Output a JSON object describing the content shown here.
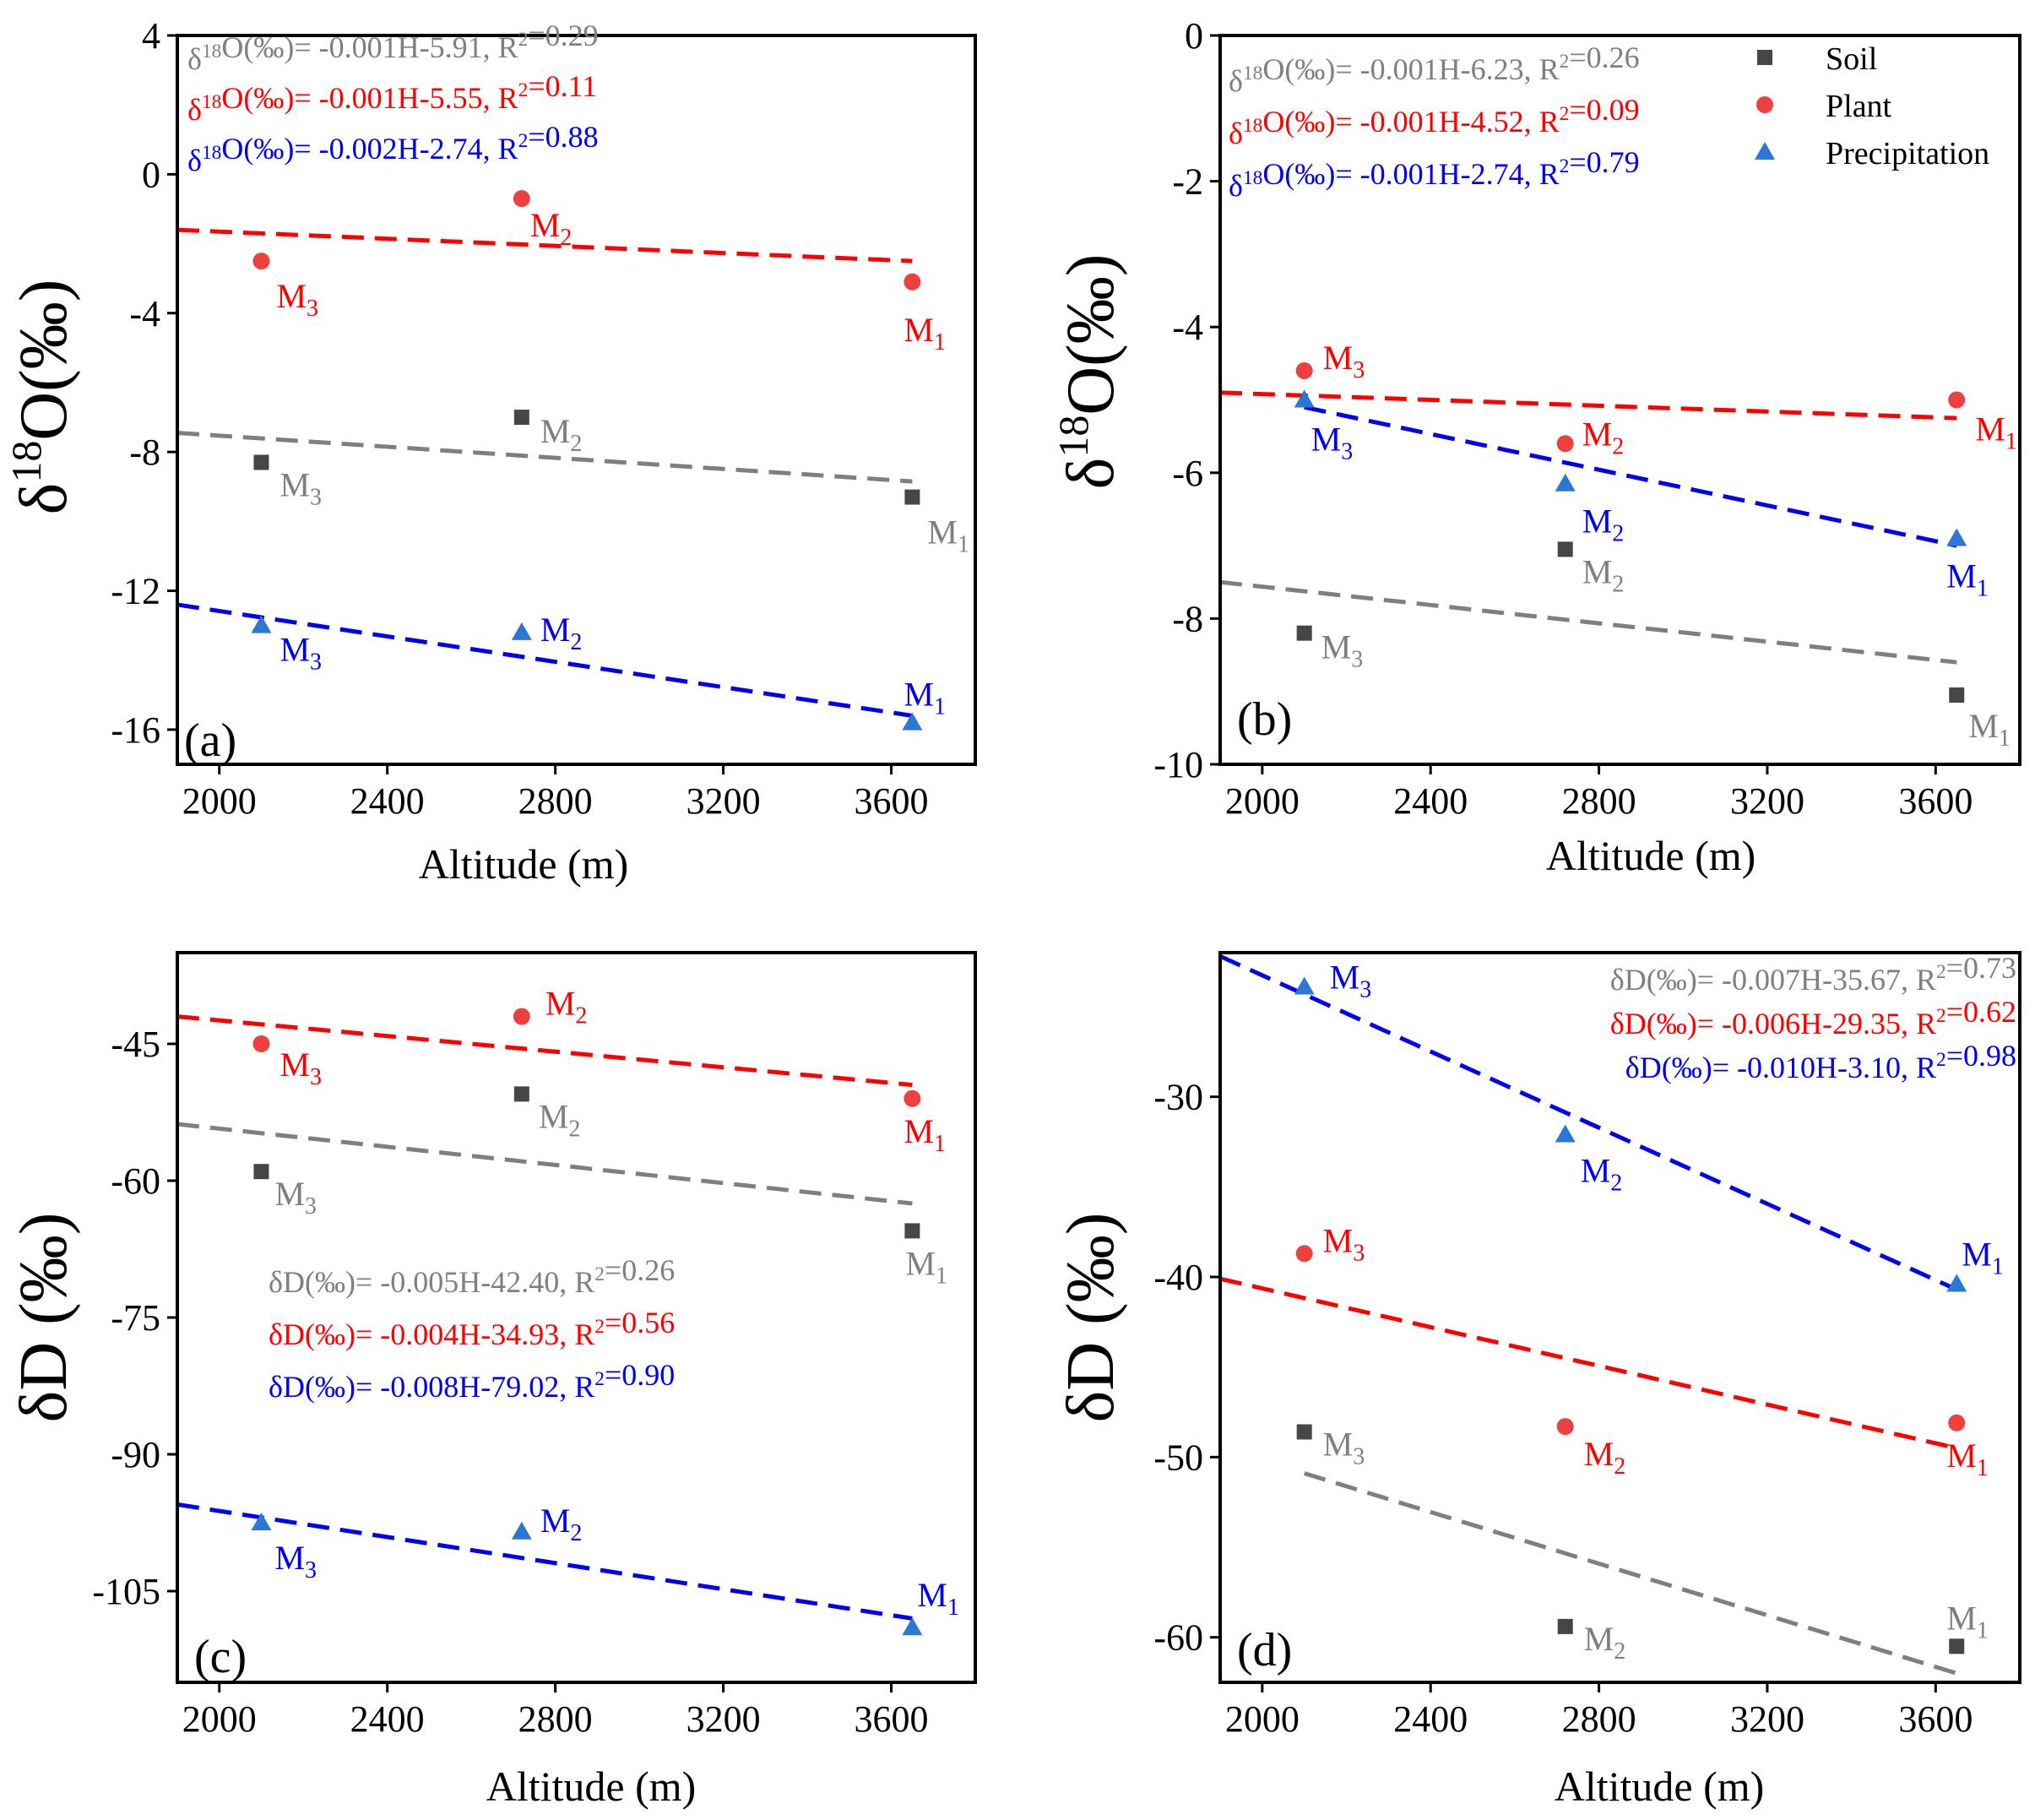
{
  "colors": {
    "soil": "#464646",
    "plant": "#ef4040",
    "precip": "#2a78d4",
    "soil_line": "#7f7f7f",
    "plant_line": "#ff0000",
    "precip_line": "#0000ee",
    "soil_text": "#7f7f7f",
    "plant_text": "#ff0000",
    "precip_text": "#0000ee"
  },
  "legend": {
    "soil": "Soil",
    "plant": "Plant",
    "precipitation": "Precipitation"
  },
  "chart_data": [
    {
      "id": "a",
      "type": "scatter",
      "panel_label": "(a)",
      "xlabel": "Altitude (m)",
      "ylabel_base": "δ",
      "ylabel_sup": "18",
      "ylabel_rest": "O(‰)",
      "xlim": [
        1900,
        3800
      ],
      "ylim": [
        -17,
        4
      ],
      "xticks": [
        2000,
        2400,
        2800,
        3200,
        3600
      ],
      "yticks": [
        4,
        0,
        -4,
        -8,
        -12,
        -16
      ],
      "series": [
        {
          "name": "Soil",
          "key": "soil",
          "marker": "square",
          "points": [
            {
              "x": 2100,
              "y": -8.3,
              "label": "M",
              "sub": "3"
            },
            {
              "x": 2720,
              "y": -7.0,
              "label": "M",
              "sub": "2"
            },
            {
              "x": 3650,
              "y": -9.3,
              "label": "M",
              "sub": "1"
            }
          ],
          "fit": [
            [
              1900,
              -7.45
            ],
            [
              3650,
              -8.85
            ]
          ]
        },
        {
          "name": "Plant",
          "key": "plant",
          "marker": "circle",
          "points": [
            {
              "x": 2100,
              "y": -2.5,
              "label": "M",
              "sub": "3"
            },
            {
              "x": 2720,
              "y": -0.7,
              "label": "M",
              "sub": "2"
            },
            {
              "x": 3650,
              "y": -3.1,
              "label": "M",
              "sub": "1"
            }
          ],
          "fit": [
            [
              1900,
              -1.6
            ],
            [
              3650,
              -2.5
            ]
          ]
        },
        {
          "name": "Precipitation",
          "key": "precip",
          "marker": "triangle",
          "points": [
            {
              "x": 2100,
              "y": -13.0,
              "label": "M",
              "sub": "3"
            },
            {
              "x": 2720,
              "y": -13.2,
              "label": "M",
              "sub": "2"
            },
            {
              "x": 3650,
              "y": -15.8,
              "label": "M",
              "sub": "1"
            }
          ],
          "fit": [
            [
              1900,
              -12.4
            ],
            [
              3650,
              -15.6
            ]
          ]
        }
      ],
      "equations": [
        {
          "key": "soil",
          "text": "δ18O(‰)= -0.001H-5.91, R2=0.29"
        },
        {
          "key": "plant",
          "text": "δ18O(‰)= -0.001H-5.55, R2=0.11"
        },
        {
          "key": "precip",
          "text": "δ18O(‰)= -0.002H-2.74, R2=0.88"
        }
      ]
    },
    {
      "id": "b",
      "type": "scatter",
      "panel_label": "(b)",
      "xlabel": "Altitude (m)",
      "ylabel_base": "δ",
      "ylabel_sup": "18",
      "ylabel_rest": "O(‰)",
      "xlim": [
        1900,
        3800
      ],
      "ylim": [
        -10,
        0
      ],
      "xticks": [
        2000,
        2400,
        2800,
        3200,
        3600
      ],
      "yticks": [
        0,
        -2,
        -4,
        -6,
        -8,
        -10
      ],
      "series": [
        {
          "name": "Soil",
          "key": "soil",
          "marker": "square",
          "points": [
            {
              "x": 2100,
              "y": -8.2,
              "label": "M",
              "sub": "3"
            },
            {
              "x": 2720,
              "y": -7.05,
              "label": "M",
              "sub": "2"
            },
            {
              "x": 3650,
              "y": -9.05,
              "label": "M",
              "sub": "1"
            }
          ],
          "fit": [
            [
              1900,
              -7.5
            ],
            [
              3650,
              -8.6
            ]
          ]
        },
        {
          "name": "Plant",
          "key": "plant",
          "marker": "circle",
          "points": [
            {
              "x": 2100,
              "y": -4.6,
              "label": "M",
              "sub": "3"
            },
            {
              "x": 2720,
              "y": -5.6,
              "label": "M",
              "sub": "2"
            },
            {
              "x": 3650,
              "y": -5.0,
              "label": "M",
              "sub": "1"
            }
          ],
          "fit": [
            [
              1900,
              -4.9
            ],
            [
              3650,
              -5.25
            ]
          ]
        },
        {
          "name": "Precipitation",
          "key": "precip",
          "marker": "triangle",
          "points": [
            {
              "x": 2100,
              "y": -5.0,
              "label": "M",
              "sub": "3"
            },
            {
              "x": 2720,
              "y": -6.15,
              "label": "M",
              "sub": "2"
            },
            {
              "x": 3650,
              "y": -6.9,
              "label": "M",
              "sub": "1"
            }
          ],
          "fit": [
            [
              2100,
              -5.1
            ],
            [
              3650,
              -7.0
            ]
          ]
        }
      ],
      "equations": [
        {
          "key": "soil",
          "text": "δ18O(‰)= -0.001H-6.23, R2=0.26"
        },
        {
          "key": "plant",
          "text": "δ18O(‰)= -0.001H-4.52, R2=0.09"
        },
        {
          "key": "precip",
          "text": "δ18O(‰)= -0.001H-2.74, R2=0.79"
        }
      ]
    },
    {
      "id": "c",
      "type": "scatter",
      "panel_label": "(c)",
      "xlabel": "Altitude (m)",
      "ylabel_base": "δD (‰)",
      "xlim": [
        1900,
        3800
      ],
      "ylim": [
        -115,
        -35
      ],
      "xticks": [
        2000,
        2400,
        2800,
        3200,
        3600
      ],
      "yticks": [
        -45,
        -60,
        -75,
        -90,
        -105
      ],
      "series": [
        {
          "name": "Soil",
          "key": "soil",
          "marker": "square",
          "points": [
            {
              "x": 2100,
              "y": -59.0,
              "label": "M",
              "sub": "3"
            },
            {
              "x": 2720,
              "y": -50.5,
              "label": "M",
              "sub": "2"
            },
            {
              "x": 3650,
              "y": -65.5,
              "label": "M",
              "sub": "1"
            }
          ],
          "fit": [
            [
              1900,
              -53.8
            ],
            [
              3650,
              -62.5
            ]
          ]
        },
        {
          "name": "Plant",
          "key": "plant",
          "marker": "circle",
          "points": [
            {
              "x": 2100,
              "y": -45.0,
              "label": "M",
              "sub": "3"
            },
            {
              "x": 2720,
              "y": -42.0,
              "label": "M",
              "sub": "2"
            },
            {
              "x": 3650,
              "y": -51.0,
              "label": "M",
              "sub": "1"
            }
          ],
          "fit": [
            [
              1900,
              -42.0
            ],
            [
              3650,
              -49.5
            ]
          ]
        },
        {
          "name": "Precipitation",
          "key": "precip",
          "marker": "triangle",
          "points": [
            {
              "x": 2100,
              "y": -97.5,
              "label": "M",
              "sub": "3"
            },
            {
              "x": 2720,
              "y": -98.5,
              "label": "M",
              "sub": "2"
            },
            {
              "x": 3650,
              "y": -109.0,
              "label": "M",
              "sub": "1"
            }
          ],
          "fit": [
            [
              1900,
              -95.5
            ],
            [
              3650,
              -108.0
            ]
          ]
        }
      ],
      "equations": [
        {
          "key": "soil",
          "text": "δD(‰)= -0.005H-42.40, R2=0.26"
        },
        {
          "key": "plant",
          "text": "δD(‰)= -0.004H-34.93, R2=0.56"
        },
        {
          "key": "precip",
          "text": "δD(‰)= -0.008H-79.02, R2=0.90"
        }
      ]
    },
    {
      "id": "d",
      "type": "scatter",
      "panel_label": "(d)",
      "xlabel": "Altitude (m)",
      "ylabel_base": "δD (‰)",
      "xlim": [
        1900,
        3800
      ],
      "ylim": [
        -62.5,
        -22
      ],
      "xticks": [
        2000,
        2400,
        2800,
        3200,
        3600
      ],
      "yticks": [
        -30,
        -40,
        -50,
        -60
      ],
      "series": [
        {
          "name": "Soil",
          "key": "soil",
          "marker": "square",
          "points": [
            {
              "x": 2100,
              "y": -48.6,
              "label": "M",
              "sub": "3"
            },
            {
              "x": 2720,
              "y": -59.4,
              "label": "M",
              "sub": "2"
            },
            {
              "x": 3650,
              "y": -60.5,
              "label": "M",
              "sub": "1"
            }
          ],
          "fit": [
            [
              2100,
              -50.9
            ],
            [
              3650,
              -62.0
            ]
          ]
        },
        {
          "name": "Plant",
          "key": "plant",
          "marker": "circle",
          "points": [
            {
              "x": 2100,
              "y": -38.7,
              "label": "M",
              "sub": "3"
            },
            {
              "x": 2720,
              "y": -48.3,
              "label": "M",
              "sub": "2"
            },
            {
              "x": 3650,
              "y": -48.1,
              "label": "M",
              "sub": "1"
            }
          ],
          "fit": [
            [
              1900,
              -40.1
            ],
            [
              3650,
              -49.5
            ]
          ]
        },
        {
          "name": "Precipitation",
          "key": "precip",
          "marker": "triangle",
          "points": [
            {
              "x": 2100,
              "y": -23.9,
              "label": "M",
              "sub": "3"
            },
            {
              "x": 2720,
              "y": -32.1,
              "label": "M",
              "sub": "2"
            },
            {
              "x": 3650,
              "y": -40.4,
              "label": "M",
              "sub": "1"
            }
          ],
          "fit": [
            [
              1900,
              -22.2
            ],
            [
              3650,
              -40.7
            ]
          ]
        }
      ],
      "equations": [
        {
          "key": "soil",
          "text": "δD(‰)= -0.007H-35.67, R2=0.73"
        },
        {
          "key": "plant",
          "text": "δD(‰)= -0.006H-29.35, R2=0.62"
        },
        {
          "key": "precip",
          "text": "δD(‰)= -0.010H-3.10, R2=0.98"
        }
      ]
    }
  ]
}
